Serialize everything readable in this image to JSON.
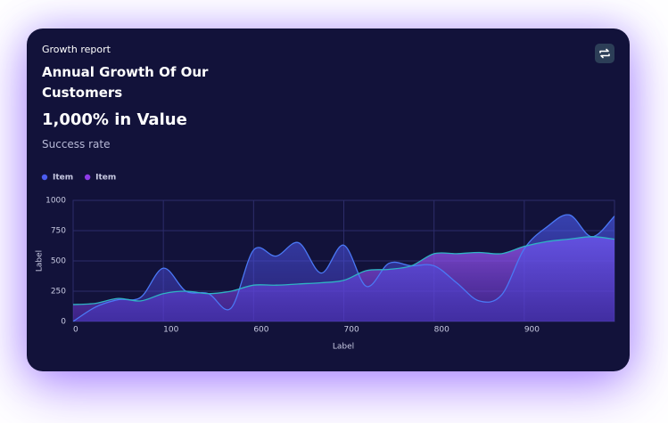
{
  "header": {
    "eyebrow": "Growth report",
    "title": "Annual Growth Of Our Customers",
    "headline": "1,000% in Value",
    "subtitle": "Success rate"
  },
  "chart_data": {
    "type": "area-line",
    "x_label": "Label",
    "y_label": "Label",
    "x": [
      0,
      0.25,
      0.5,
      0.75,
      1,
      1.25,
      1.5,
      1.75,
      2,
      2.25,
      2.5,
      2.75,
      3,
      3.25,
      3.5,
      3.75,
      4,
      4.25,
      4.5,
      4.75,
      5,
      5.25,
      5.5,
      5.75,
      6
    ],
    "xlim": [
      0,
      6
    ],
    "xticks": [
      0,
      {
        "value": 1,
        "label": "100"
      },
      {
        "value": 2,
        "label": "600"
      },
      {
        "value": 3,
        "label": "700"
      },
      {
        "value": 4,
        "label": "800"
      },
      {
        "value": 5,
        "label": "900"
      }
    ],
    "ylim": [
      0,
      1000
    ],
    "yticks": [
      0,
      250,
      500,
      750,
      1000
    ],
    "grid": true,
    "legend": "top-left",
    "series": [
      {
        "name": "Item",
        "color": "#4b5cf0",
        "line_color": "#4a78f5",
        "values": [
          0,
          120,
          180,
          200,
          440,
          250,
          230,
          110,
          590,
          540,
          650,
          400,
          630,
          290,
          480,
          460,
          460,
          320,
          170,
          220,
          600,
          780,
          880,
          700,
          870
        ]
      },
      {
        "name": "Item",
        "color": "#8e3be8",
        "line_color": "#2fb3c4",
        "values": [
          140,
          150,
          190,
          170,
          230,
          250,
          230,
          250,
          300,
          300,
          310,
          320,
          340,
          420,
          430,
          460,
          560,
          560,
          570,
          560,
          620,
          660,
          680,
          700,
          680
        ]
      }
    ]
  }
}
